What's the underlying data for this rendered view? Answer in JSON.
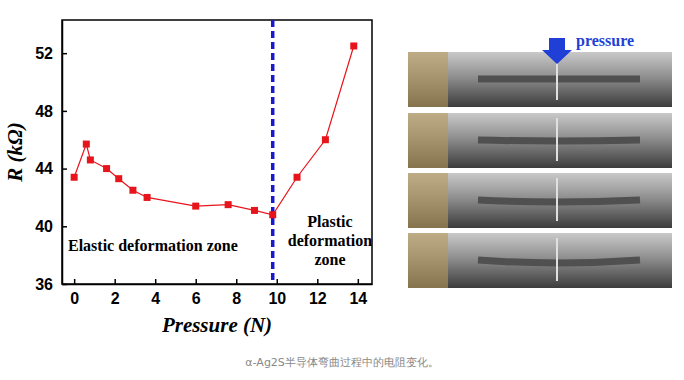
{
  "chart_data": {
    "type": "line",
    "x_label": "Pressure (N)",
    "y_label": "R (kΩ)",
    "x": [
      0,
      0.6,
      0.8,
      1.6,
      2.2,
      2.9,
      3.6,
      6.0,
      7.6,
      8.9,
      9.8,
      11.0,
      12.4,
      13.8
    ],
    "series": [
      {
        "name": "R",
        "color": "#e8141c",
        "marker": "square",
        "line_style": "solid",
        "values": [
          43.4,
          45.7,
          44.6,
          44.0,
          43.3,
          42.5,
          42.0,
          41.4,
          41.5,
          41.1,
          40.8,
          43.4,
          46.0,
          52.5
        ]
      }
    ],
    "xlim": [
      -0.6,
      14.7
    ],
    "ylim": [
      36,
      54.3
    ],
    "xticks": [
      0,
      2,
      4,
      6,
      8,
      10,
      12,
      14
    ],
    "yticks": [
      36,
      40,
      44,
      48,
      52
    ],
    "grid": false,
    "vline": {
      "x": 9.8,
      "color": "#1a1acc",
      "line_style": "dashed"
    },
    "annotations": [
      {
        "lines": [
          "Elastic deformation zone"
        ]
      },
      {
        "lines": [
          "Plastic",
          "deformation",
          "zone"
        ]
      }
    ]
  },
  "photo_label": "pressure",
  "caption": "α-Ag2S半导体弯曲过程中的电阻变化。"
}
